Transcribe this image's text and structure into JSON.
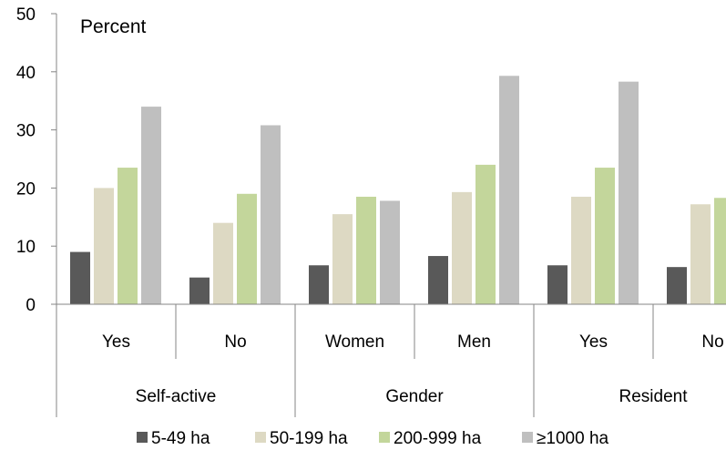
{
  "chart_data": {
    "type": "bar",
    "ylabel": "Percent",
    "ylim": [
      0,
      50
    ],
    "yticks": [
      0,
      10,
      20,
      30,
      40,
      50
    ],
    "grid": false,
    "legend_position": "bottom",
    "groups": [
      {
        "label": "Self-active",
        "categories": [
          "Yes",
          "No"
        ]
      },
      {
        "label": "Gender",
        "categories": [
          "Women",
          "Men"
        ]
      },
      {
        "label": "Resident",
        "categories": [
          "Yes",
          "No"
        ]
      }
    ],
    "categories": [
      "Yes",
      "No",
      "Women",
      "Men",
      "Yes",
      "No"
    ],
    "series": [
      {
        "name": "5-49 ha",
        "color": "#595959",
        "values": [
          9.0,
          4.6,
          6.7,
          8.3,
          6.7,
          6.4
        ]
      },
      {
        "name": "50-199 ha",
        "color": "#ddd9c3",
        "values": [
          20.0,
          14.0,
          15.5,
          19.3,
          18.5,
          17.2
        ]
      },
      {
        "name": "200-999 ha",
        "color": "#c3d69b",
        "values": [
          23.5,
          19.0,
          18.5,
          24.0,
          23.5,
          18.3
        ]
      },
      {
        "name": "≥1000 ha",
        "color": "#bfbfbf",
        "values": [
          34.0,
          30.8,
          17.8,
          39.3,
          38.3,
          null
        ]
      }
    ]
  }
}
